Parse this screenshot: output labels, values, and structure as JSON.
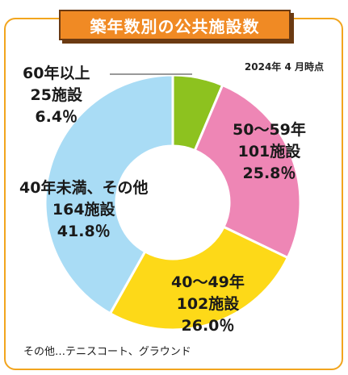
{
  "title": "築年数別の公共施設数",
  "date_note": "2024年 4 月時点",
  "footnote": "その他…テニスコート、グラウンド",
  "colors": {
    "frame": "#f2a51e",
    "title_bg": "#f08a24",
    "title_border": "#6b3a12"
  },
  "chart_data": {
    "type": "pie",
    "donut": true,
    "categories": [
      "60年以上",
      "50～59年",
      "40～49年",
      "40年未満、その他"
    ],
    "values": [
      25,
      101,
      102,
      164
    ],
    "percents": [
      "6.4％",
      "25.8％",
      "26.0％",
      "41.8％"
    ],
    "counts": [
      "25施設",
      "101施設",
      "102施設",
      "164施設"
    ],
    "colors": [
      "#8dc21f",
      "#ee86b5",
      "#fdd918",
      "#a9dcf5"
    ],
    "unit": "施設"
  }
}
